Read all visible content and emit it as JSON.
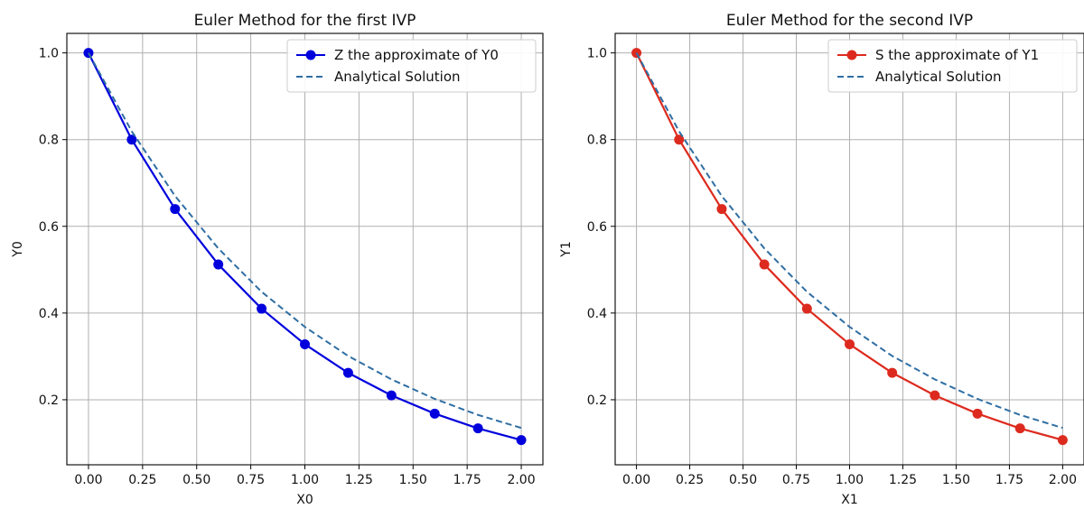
{
  "chart_data": [
    {
      "type": "line",
      "title": "Euler Method for the first IVP",
      "xlabel": "X0",
      "ylabel": "Y0",
      "xlim": [
        -0.1,
        2.1
      ],
      "ylim": [
        0.05,
        1.045
      ],
      "xticks": [
        "0.00",
        "0.25",
        "0.50",
        "0.75",
        "1.00",
        "1.25",
        "1.50",
        "1.75",
        "2.00"
      ],
      "yticks": [
        "0.2",
        "0.4",
        "0.6",
        "0.8",
        "1.0"
      ],
      "grid": true,
      "legend_position": "top-right",
      "series": [
        {
          "name": "Z the approximate of Y0",
          "style": "solid-with-markers",
          "color": "#0000dd",
          "x": [
            0.0,
            0.2,
            0.4,
            0.6,
            0.8,
            1.0,
            1.2,
            1.4,
            1.6,
            1.8,
            2.0
          ],
          "y": [
            1.0,
            0.8,
            0.64,
            0.512,
            0.41,
            0.328,
            0.262,
            0.21,
            0.168,
            0.134,
            0.107
          ]
        },
        {
          "name": "Analytical Solution",
          "style": "dashed",
          "color": "#2f6ea3",
          "x": [
            0.0,
            0.2,
            0.4,
            0.6,
            0.8,
            1.0,
            1.2,
            1.4,
            1.6,
            1.8,
            2.0
          ],
          "y": [
            1.0,
            0.819,
            0.67,
            0.549,
            0.449,
            0.368,
            0.301,
            0.247,
            0.202,
            0.165,
            0.135
          ]
        }
      ]
    },
    {
      "type": "line",
      "title": "Euler Method for the second IVP",
      "xlabel": "X1",
      "ylabel": "Y1",
      "xlim": [
        -0.1,
        2.1
      ],
      "ylim": [
        0.05,
        1.045
      ],
      "xticks": [
        "0.00",
        "0.25",
        "0.50",
        "0.75",
        "1.00",
        "1.25",
        "1.50",
        "1.75",
        "2.00"
      ],
      "yticks": [
        "0.2",
        "0.4",
        "0.6",
        "0.8",
        "1.0"
      ],
      "grid": true,
      "legend_position": "top-right",
      "series": [
        {
          "name": "S the approximate of Y1",
          "style": "solid-with-markers",
          "color": "#dd2a1e",
          "x": [
            0.0,
            0.2,
            0.4,
            0.6,
            0.8,
            1.0,
            1.2,
            1.4,
            1.6,
            1.8,
            2.0
          ],
          "y": [
            1.0,
            0.8,
            0.64,
            0.512,
            0.41,
            0.328,
            0.262,
            0.21,
            0.168,
            0.134,
            0.107
          ]
        },
        {
          "name": "Analytical Solution",
          "style": "dashed",
          "color": "#2f6ea3",
          "x": [
            0.0,
            0.2,
            0.4,
            0.6,
            0.8,
            1.0,
            1.2,
            1.4,
            1.6,
            1.8,
            2.0
          ],
          "y": [
            1.0,
            0.819,
            0.67,
            0.549,
            0.449,
            0.368,
            0.301,
            0.247,
            0.202,
            0.165,
            0.135
          ]
        }
      ]
    }
  ]
}
